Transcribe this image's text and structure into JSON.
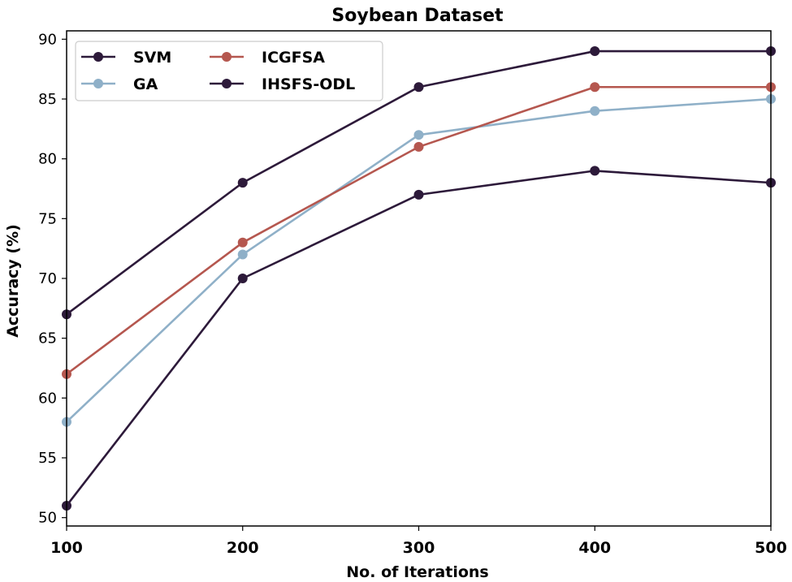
{
  "chart_data": {
    "type": "line",
    "title": "Soybean Dataset",
    "xlabel": "No. of Iterations",
    "ylabel": "Accuracy (%)",
    "x": [
      100,
      200,
      300,
      400,
      500
    ],
    "xlim": [
      100,
      500
    ],
    "ylim": [
      49.3,
      90.7
    ],
    "xticks": [
      "100",
      "200",
      "300",
      "400",
      "500"
    ],
    "yticks": [
      "50",
      "55",
      "60",
      "65",
      "70",
      "75",
      "80",
      "85",
      "90"
    ],
    "grid": false,
    "legend_position": "top-left",
    "series": [
      {
        "name": "SVM",
        "color": "#2d1a3a",
        "values": [
          51,
          70,
          77,
          79,
          78
        ]
      },
      {
        "name": "GA",
        "color": "#8fb0c8",
        "values": [
          58,
          72,
          82,
          84,
          85
        ]
      },
      {
        "name": "ICGFSA",
        "color": "#b5574f",
        "values": [
          62,
          73,
          81,
          86,
          86
        ]
      },
      {
        "name": "IHSFS-ODL",
        "color": "#2d1a3a",
        "values": [
          67,
          78,
          86,
          89,
          89
        ]
      }
    ]
  }
}
